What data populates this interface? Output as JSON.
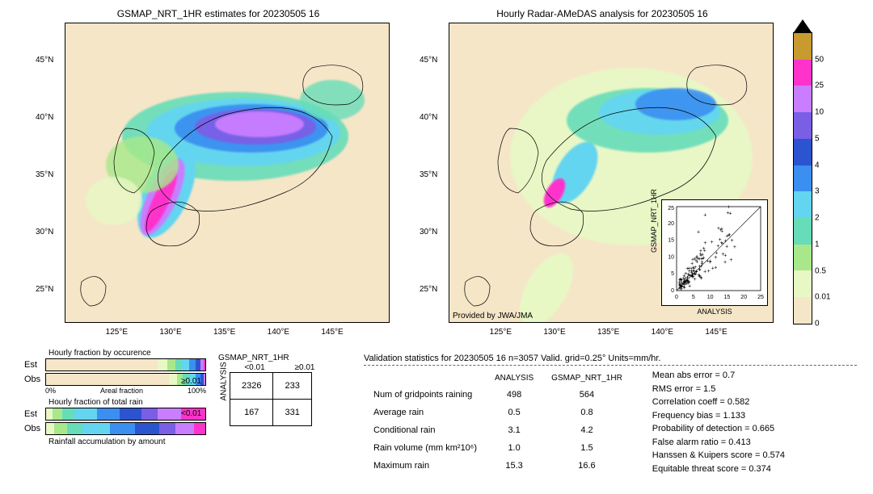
{
  "palette": {
    "levels": [
      0,
      0.01,
      0.5,
      1,
      2,
      3,
      4,
      5,
      10,
      25,
      50
    ],
    "colors": [
      "#f5e6c8",
      "#e7f8c4",
      "#a8e88a",
      "#66dcb8",
      "#63d5f0",
      "#3a8ff0",
      "#2c54d0",
      "#7a5ee6",
      "#c97dff",
      "#ff33cc",
      "#c99a2e"
    ],
    "triangle_top_color": "#000000"
  },
  "left_map": {
    "title": "GSMAP_NRT_1HR estimates for 20230505 16",
    "xlim": [
      120,
      150
    ],
    "ylim": [
      22,
      48
    ],
    "xticks": [
      "125°E",
      "130°E",
      "135°E",
      "140°E",
      "145°E"
    ],
    "yticks": [
      "25°N",
      "30°N",
      "35°N",
      "40°N",
      "45°N"
    ]
  },
  "right_map": {
    "title": "Hourly Radar-AMeDAS analysis for 20230505 16",
    "xlim": [
      120,
      150
    ],
    "ylim": [
      22,
      48
    ],
    "xticks": [
      "125°E",
      "130°E",
      "135°E",
      "140°E",
      "145°E"
    ],
    "yticks": [
      "25°N",
      "30°N",
      "35°N",
      "40°N",
      "45°N"
    ],
    "attribution": "Provided by JWA/JMA"
  },
  "inset_scatter": {
    "xlabel": "ANALYSIS",
    "ylabel": "GSMAP_NRT_1HR",
    "xlim": [
      0,
      25
    ],
    "ylim": [
      0,
      25
    ],
    "xticks": [
      0,
      5,
      10,
      15,
      20,
      25
    ],
    "yticks": [
      0,
      5,
      10,
      15,
      20,
      25
    ]
  },
  "fractions": {
    "occurrence_title": "Hourly fraction by occurence",
    "totalrain_title": "Hourly fraction of total rain",
    "accum_title": "Rainfall accumulation by amount",
    "row_labels": [
      "Est",
      "Obs"
    ],
    "x_axis": "Areal fraction",
    "x_ticks": [
      "0%",
      "100%"
    ],
    "occurrence": {
      "est": [
        {
          "c": "#f5e6c8",
          "w": 70
        },
        {
          "c": "#e7f8c4",
          "w": 6
        },
        {
          "c": "#a8e88a",
          "w": 5
        },
        {
          "c": "#66dcb8",
          "w": 4
        },
        {
          "c": "#63d5f0",
          "w": 5
        },
        {
          "c": "#3a8ff0",
          "w": 4
        },
        {
          "c": "#2c54d0",
          "w": 3
        },
        {
          "c": "#c97dff",
          "w": 2
        },
        {
          "c": "#ff33cc",
          "w": 1
        }
      ],
      "obs": [
        {
          "c": "#f5e6c8",
          "w": 77
        },
        {
          "c": "#e7f8c4",
          "w": 5
        },
        {
          "c": "#a8e88a",
          "w": 4
        },
        {
          "c": "#66dcb8",
          "w": 4
        },
        {
          "c": "#63d5f0",
          "w": 4
        },
        {
          "c": "#3a8ff0",
          "w": 3
        },
        {
          "c": "#2c54d0",
          "w": 2
        },
        {
          "c": "#c97dff",
          "w": 1
        }
      ]
    },
    "totalrain": {
      "est": [
        {
          "c": "#e7f8c4",
          "w": 4
        },
        {
          "c": "#a8e88a",
          "w": 6
        },
        {
          "c": "#66dcb8",
          "w": 8
        },
        {
          "c": "#63d5f0",
          "w": 14
        },
        {
          "c": "#3a8ff0",
          "w": 14
        },
        {
          "c": "#2c54d0",
          "w": 14
        },
        {
          "c": "#7a5ee6",
          "w": 10
        },
        {
          "c": "#c97dff",
          "w": 15
        },
        {
          "c": "#ff33cc",
          "w": 15
        }
      ],
      "obs": [
        {
          "c": "#e7f8c4",
          "w": 5
        },
        {
          "c": "#a8e88a",
          "w": 8
        },
        {
          "c": "#66dcb8",
          "w": 10
        },
        {
          "c": "#63d5f0",
          "w": 17
        },
        {
          "c": "#3a8ff0",
          "w": 16
        },
        {
          "c": "#2c54d0",
          "w": 15
        },
        {
          "c": "#7a5ee6",
          "w": 10
        },
        {
          "c": "#c97dff",
          "w": 12
        },
        {
          "c": "#ff33cc",
          "w": 7
        }
      ]
    }
  },
  "contingency": {
    "col_header": "GSMAP_NRT_1HR",
    "row_header": "ANALYSIS",
    "col_labels": [
      "<0.01",
      "≥0.01"
    ],
    "row_labels": [
      "≥0.01",
      "<0.01"
    ],
    "cells": [
      [
        "2326",
        "233"
      ],
      [
        "167",
        "331"
      ]
    ]
  },
  "validation": {
    "header": "Validation statistics for 20230505 16  n=3057 Valid. grid=0.25°  Units=mm/hr.",
    "columns": [
      "",
      "ANALYSIS",
      "GSMAP_NRT_1HR"
    ],
    "rows": [
      [
        "Num of gridpoints raining",
        "498",
        "564"
      ],
      [
        "Average rain",
        "0.5",
        "0.8"
      ],
      [
        "Conditional rain",
        "3.1",
        "4.2"
      ],
      [
        "Rain volume (mm km²10⁶)",
        "1.0",
        "1.5"
      ],
      [
        "Maximum rain",
        "15.3",
        "16.6"
      ]
    ],
    "stats": [
      "Mean abs error =   0.7",
      "RMS error =   1.5",
      "Correlation coeff =  0.582",
      "Frequency bias =  1.133",
      "Probability of detection =  0.665",
      "False alarm ratio =  0.413",
      "Hanssen & Kuipers score =  0.574",
      "Equitable threat score =  0.374"
    ]
  }
}
